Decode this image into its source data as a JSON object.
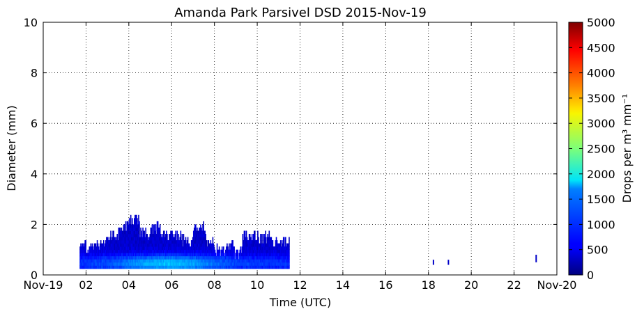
{
  "chart_data": {
    "type": "heatmap",
    "title": "Amanda Park Parsivel DSD 2015-Nov-19",
    "xlabel": "Time (UTC)",
    "ylabel": "Diameter (mm)",
    "colorbar_label": "Drops per m³ mm⁻¹",
    "xlim": [
      0,
      24
    ],
    "ylim": [
      0,
      10
    ],
    "x_ticks": [
      0,
      2,
      4,
      6,
      8,
      10,
      12,
      14,
      16,
      18,
      20,
      22,
      24
    ],
    "x_tick_labels": [
      "Nov-19",
      "02",
      "04",
      "06",
      "08",
      "10",
      "12",
      "14",
      "16",
      "18",
      "20",
      "22",
      "Nov-20"
    ],
    "y_ticks": [
      0,
      2,
      4,
      6,
      8,
      10
    ],
    "y_tick_labels": [
      "0",
      "2",
      "4",
      "6",
      "8",
      "10"
    ],
    "colorbar_range": [
      0,
      5000
    ],
    "colorbar_ticks": [
      0,
      500,
      1000,
      1500,
      2000,
      2500,
      3000,
      3500,
      4000,
      4500,
      5000
    ],
    "colorbar_tick_labels": [
      "0",
      "500",
      "1000",
      "1500",
      "2000",
      "2500",
      "3000",
      "3500",
      "4000",
      "4500",
      "5000"
    ],
    "colormap": "jet",
    "grid": true,
    "rain_columns": [
      {
        "t_start": 1.7,
        "t_end": 2.3,
        "d_max": 1.1
      },
      {
        "t_start": 2.3,
        "t_end": 3.0,
        "d_max": 1.2
      },
      {
        "t_start": 3.0,
        "t_end": 3.5,
        "d_max": 1.5
      },
      {
        "t_start": 3.5,
        "t_end": 4.0,
        "d_max": 1.8
      },
      {
        "t_start": 4.0,
        "t_end": 4.5,
        "d_max": 2.1
      },
      {
        "t_start": 4.5,
        "t_end": 5.0,
        "d_max": 1.6
      },
      {
        "t_start": 5.0,
        "t_end": 5.5,
        "d_max": 1.8
      },
      {
        "t_start": 5.5,
        "t_end": 6.0,
        "d_max": 1.5
      },
      {
        "t_start": 6.0,
        "t_end": 6.5,
        "d_max": 1.5
      },
      {
        "t_start": 6.5,
        "t_end": 7.0,
        "d_max": 1.3
      },
      {
        "t_start": 7.0,
        "t_end": 7.6,
        "d_max": 1.8
      },
      {
        "t_start": 7.6,
        "t_end": 8.0,
        "d_max": 1.2
      },
      {
        "t_start": 8.0,
        "t_end": 8.5,
        "d_max": 0.9
      },
      {
        "t_start": 8.5,
        "t_end": 8.9,
        "d_max": 1.1
      },
      {
        "t_start": 8.9,
        "t_end": 9.3,
        "d_max": 0.8
      },
      {
        "t_start": 9.3,
        "t_end": 10.0,
        "d_max": 1.5
      },
      {
        "t_start": 10.0,
        "t_end": 10.7,
        "d_max": 1.4
      },
      {
        "t_start": 10.7,
        "t_end": 11.5,
        "d_max": 1.2
      }
    ],
    "isolated_drops": [
      {
        "t": 18.2,
        "d_min": 0.4,
        "d_max": 0.6
      },
      {
        "t": 18.9,
        "d_min": 0.4,
        "d_max": 0.6
      },
      {
        "t": 23.0,
        "d_min": 0.5,
        "d_max": 0.8
      }
    ]
  }
}
